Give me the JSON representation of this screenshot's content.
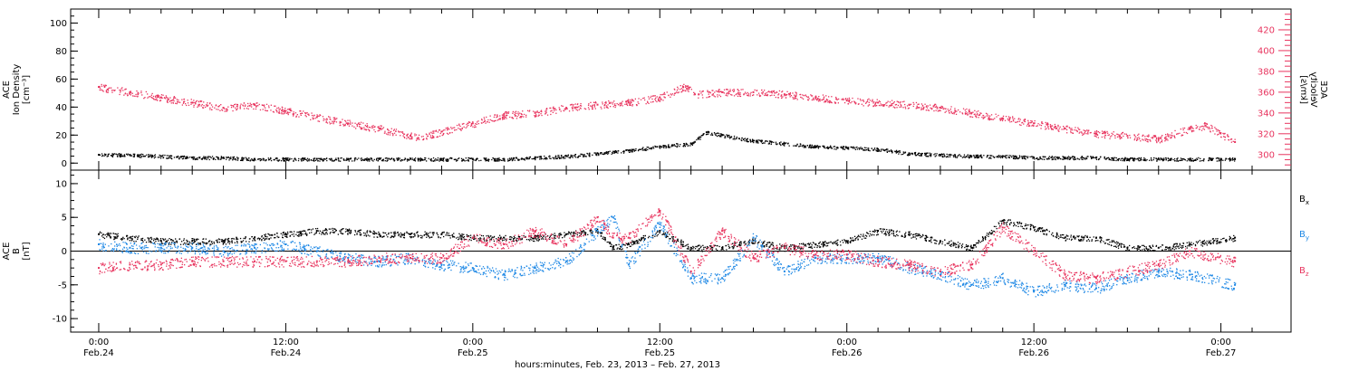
{
  "chart_data": [
    {
      "type": "scatter",
      "title": "",
      "ylabel_left": [
        "ACE",
        "Ion Density",
        "[cm⁻³]"
      ],
      "ylabel_right": [
        "ACE",
        "Velocity",
        "[km/s]"
      ],
      "ylim": [
        -5,
        110
      ],
      "ylim_right": [
        285,
        440
      ],
      "yticks": [
        0,
        20,
        40,
        60,
        80,
        100
      ],
      "yticks_right": [
        300,
        320,
        340,
        360,
        380,
        400,
        420
      ],
      "series": [
        {
          "key": "density",
          "color": "#000000",
          "x": [
            0.0,
            2.0,
            4.0,
            6.0,
            8.0,
            10.0,
            12.0,
            14.0,
            16.0,
            18.0,
            20.0,
            20.5,
            22.0,
            24.0,
            26.0,
            28.0,
            30.0,
            32.0,
            34.0,
            36.0,
            38.0,
            39.0,
            40.0,
            42.0,
            44.0,
            46.0,
            48.0,
            50.0,
            52.0,
            54.0,
            56.0,
            58.0,
            60.0,
            62.0,
            64.0,
            66.0,
            68.0,
            70.0,
            72.0,
            72.9
          ],
          "y": [
            6,
            6,
            5,
            4,
            4,
            3,
            3,
            3,
            3,
            3,
            3,
            3,
            3,
            3,
            3,
            4,
            5,
            7,
            9,
            12,
            14,
            22,
            20,
            16,
            14,
            12,
            11,
            10,
            7,
            6,
            5,
            5,
            4,
            4,
            4,
            3,
            3,
            3,
            3,
            3
          ]
        },
        {
          "key": "velocity",
          "axis": "right",
          "color": "#e8355f",
          "x": [
            0.0,
            2.0,
            4.0,
            6.0,
            8.0,
            10.0,
            12.0,
            14.0,
            16.0,
            18.0,
            20.0,
            20.5,
            22.0,
            24.0,
            26.0,
            28.0,
            30.0,
            32.0,
            34.0,
            36.0,
            37.5,
            38.5,
            40.0,
            42.0,
            44.0,
            46.0,
            48.0,
            50.0,
            52.0,
            54.0,
            56.0,
            58.0,
            60.0,
            62.0,
            64.0,
            66.0,
            68.0,
            70.0,
            71.0,
            72.9
          ],
          "y": [
            365,
            360,
            355,
            350,
            345,
            348,
            342,
            336,
            330,
            325,
            318,
            316,
            322,
            330,
            338,
            340,
            345,
            348,
            350,
            355,
            365,
            358,
            360,
            360,
            358,
            355,
            352,
            350,
            348,
            345,
            340,
            335,
            330,
            325,
            320,
            318,
            315,
            325,
            328,
            312
          ]
        }
      ]
    },
    {
      "type": "scatter",
      "title": "",
      "ylabel_left": [
        "ACE",
        "B",
        "[nT]"
      ],
      "ylim": [
        -12,
        12
      ],
      "yticks": [
        -10,
        -5,
        0,
        5,
        10
      ],
      "series": [
        {
          "name": "Bx",
          "label": "B",
          "sub": "x",
          "color": "#000000",
          "x": [
            0.0,
            2.0,
            4.0,
            6.0,
            8.0,
            10.0,
            12.0,
            14.0,
            16.0,
            18.0,
            20.0,
            22.0,
            24.0,
            26.0,
            28.0,
            30.0,
            32.0,
            33.0,
            34.0,
            36.0,
            38.0,
            40.0,
            42.0,
            44.0,
            46.0,
            48.0,
            50.0,
            52.0,
            54.0,
            56.0,
            58.0,
            60.0,
            62.0,
            64.0,
            66.0,
            68.0,
            70.0,
            72.9
          ],
          "y": [
            2.5,
            2.0,
            1.5,
            1.5,
            1.5,
            2.0,
            2.5,
            3.0,
            3.0,
            2.5,
            2.5,
            2.5,
            2.0,
            2.0,
            2.0,
            2.5,
            3.0,
            0.5,
            1.0,
            3.0,
            0.5,
            0.5,
            1.5,
            0.5,
            1.0,
            1.5,
            3.0,
            2.5,
            1.5,
            0.5,
            4.5,
            3.5,
            2.0,
            2.0,
            0.5,
            0.5,
            1.0,
            2.0
          ]
        },
        {
          "name": "By",
          "label": "B",
          "sub": "y",
          "color": "#1e88e5",
          "x": [
            0.0,
            2.0,
            4.0,
            6.0,
            8.0,
            10.0,
            12.0,
            14.0,
            16.0,
            18.0,
            20.0,
            22.0,
            24.0,
            26.0,
            28.0,
            30.0,
            32.0,
            33.0,
            34.0,
            36.0,
            38.0,
            40.0,
            42.0,
            44.0,
            46.0,
            48.0,
            50.0,
            52.0,
            54.0,
            56.0,
            58.0,
            60.0,
            62.0,
            64.0,
            66.0,
            68.0,
            70.0,
            72.9
          ],
          "y": [
            1.0,
            0.5,
            0.5,
            0.5,
            0.0,
            0.5,
            1.0,
            0.0,
            -1.0,
            -1.5,
            -1.0,
            -2.0,
            -2.5,
            -3.5,
            -2.5,
            -1.5,
            3.0,
            5.0,
            -2.0,
            4.0,
            -4.0,
            -4.0,
            2.0,
            -3.0,
            -1.0,
            -1.0,
            -1.0,
            -2.5,
            -3.5,
            -5.0,
            -4.0,
            -6.0,
            -5.0,
            -5.5,
            -4.0,
            -3.0,
            -3.5,
            -5.0
          ]
        },
        {
          "name": "Bz",
          "label": "B",
          "sub": "z",
          "color": "#e8355f",
          "x": [
            0.0,
            2.0,
            4.0,
            6.0,
            8.0,
            10.0,
            12.0,
            14.0,
            16.0,
            18.0,
            20.0,
            22.0,
            24.0,
            26.0,
            28.0,
            30.0,
            32.0,
            33.0,
            34.0,
            36.0,
            38.0,
            40.0,
            42.0,
            44.0,
            46.0,
            48.0,
            50.0,
            52.0,
            54.0,
            56.0,
            58.0,
            60.0,
            62.0,
            64.0,
            66.0,
            68.0,
            70.0,
            72.9
          ],
          "y": [
            -2.5,
            -2.0,
            -2.0,
            -1.5,
            -1.5,
            -1.5,
            -1.5,
            -1.5,
            -1.5,
            -1.0,
            -1.0,
            -1.0,
            2.0,
            1.0,
            3.0,
            1.0,
            5.0,
            2.0,
            2.0,
            6.0,
            -3.0,
            3.0,
            -1.0,
            0.5,
            -0.5,
            -0.5,
            -1.5,
            -2.0,
            -3.0,
            -2.0,
            3.5,
            0.0,
            -3.5,
            -4.0,
            -3.0,
            -2.0,
            0.0,
            -1.5
          ]
        }
      ]
    }
  ],
  "xaxis": {
    "ticks": [
      0,
      12,
      24,
      36,
      48,
      60,
      72
    ],
    "tick_labels": [
      {
        "time": "0:00",
        "date": "Feb.24"
      },
      {
        "time": "12:00",
        "date": "Feb.24"
      },
      {
        "time": "0:00",
        "date": "Feb.25"
      },
      {
        "time": "12:00",
        "date": "Feb.25"
      },
      {
        "time": "0:00",
        "date": "Feb.26"
      },
      {
        "time": "12:00",
        "date": "Feb.26"
      },
      {
        "time": "0:00",
        "date": "Feb.27"
      }
    ],
    "xlim": [
      -1.8,
      76.5
    ],
    "title": "hours:minutes, Feb. 23, 2013 – Feb. 27, 2013"
  }
}
